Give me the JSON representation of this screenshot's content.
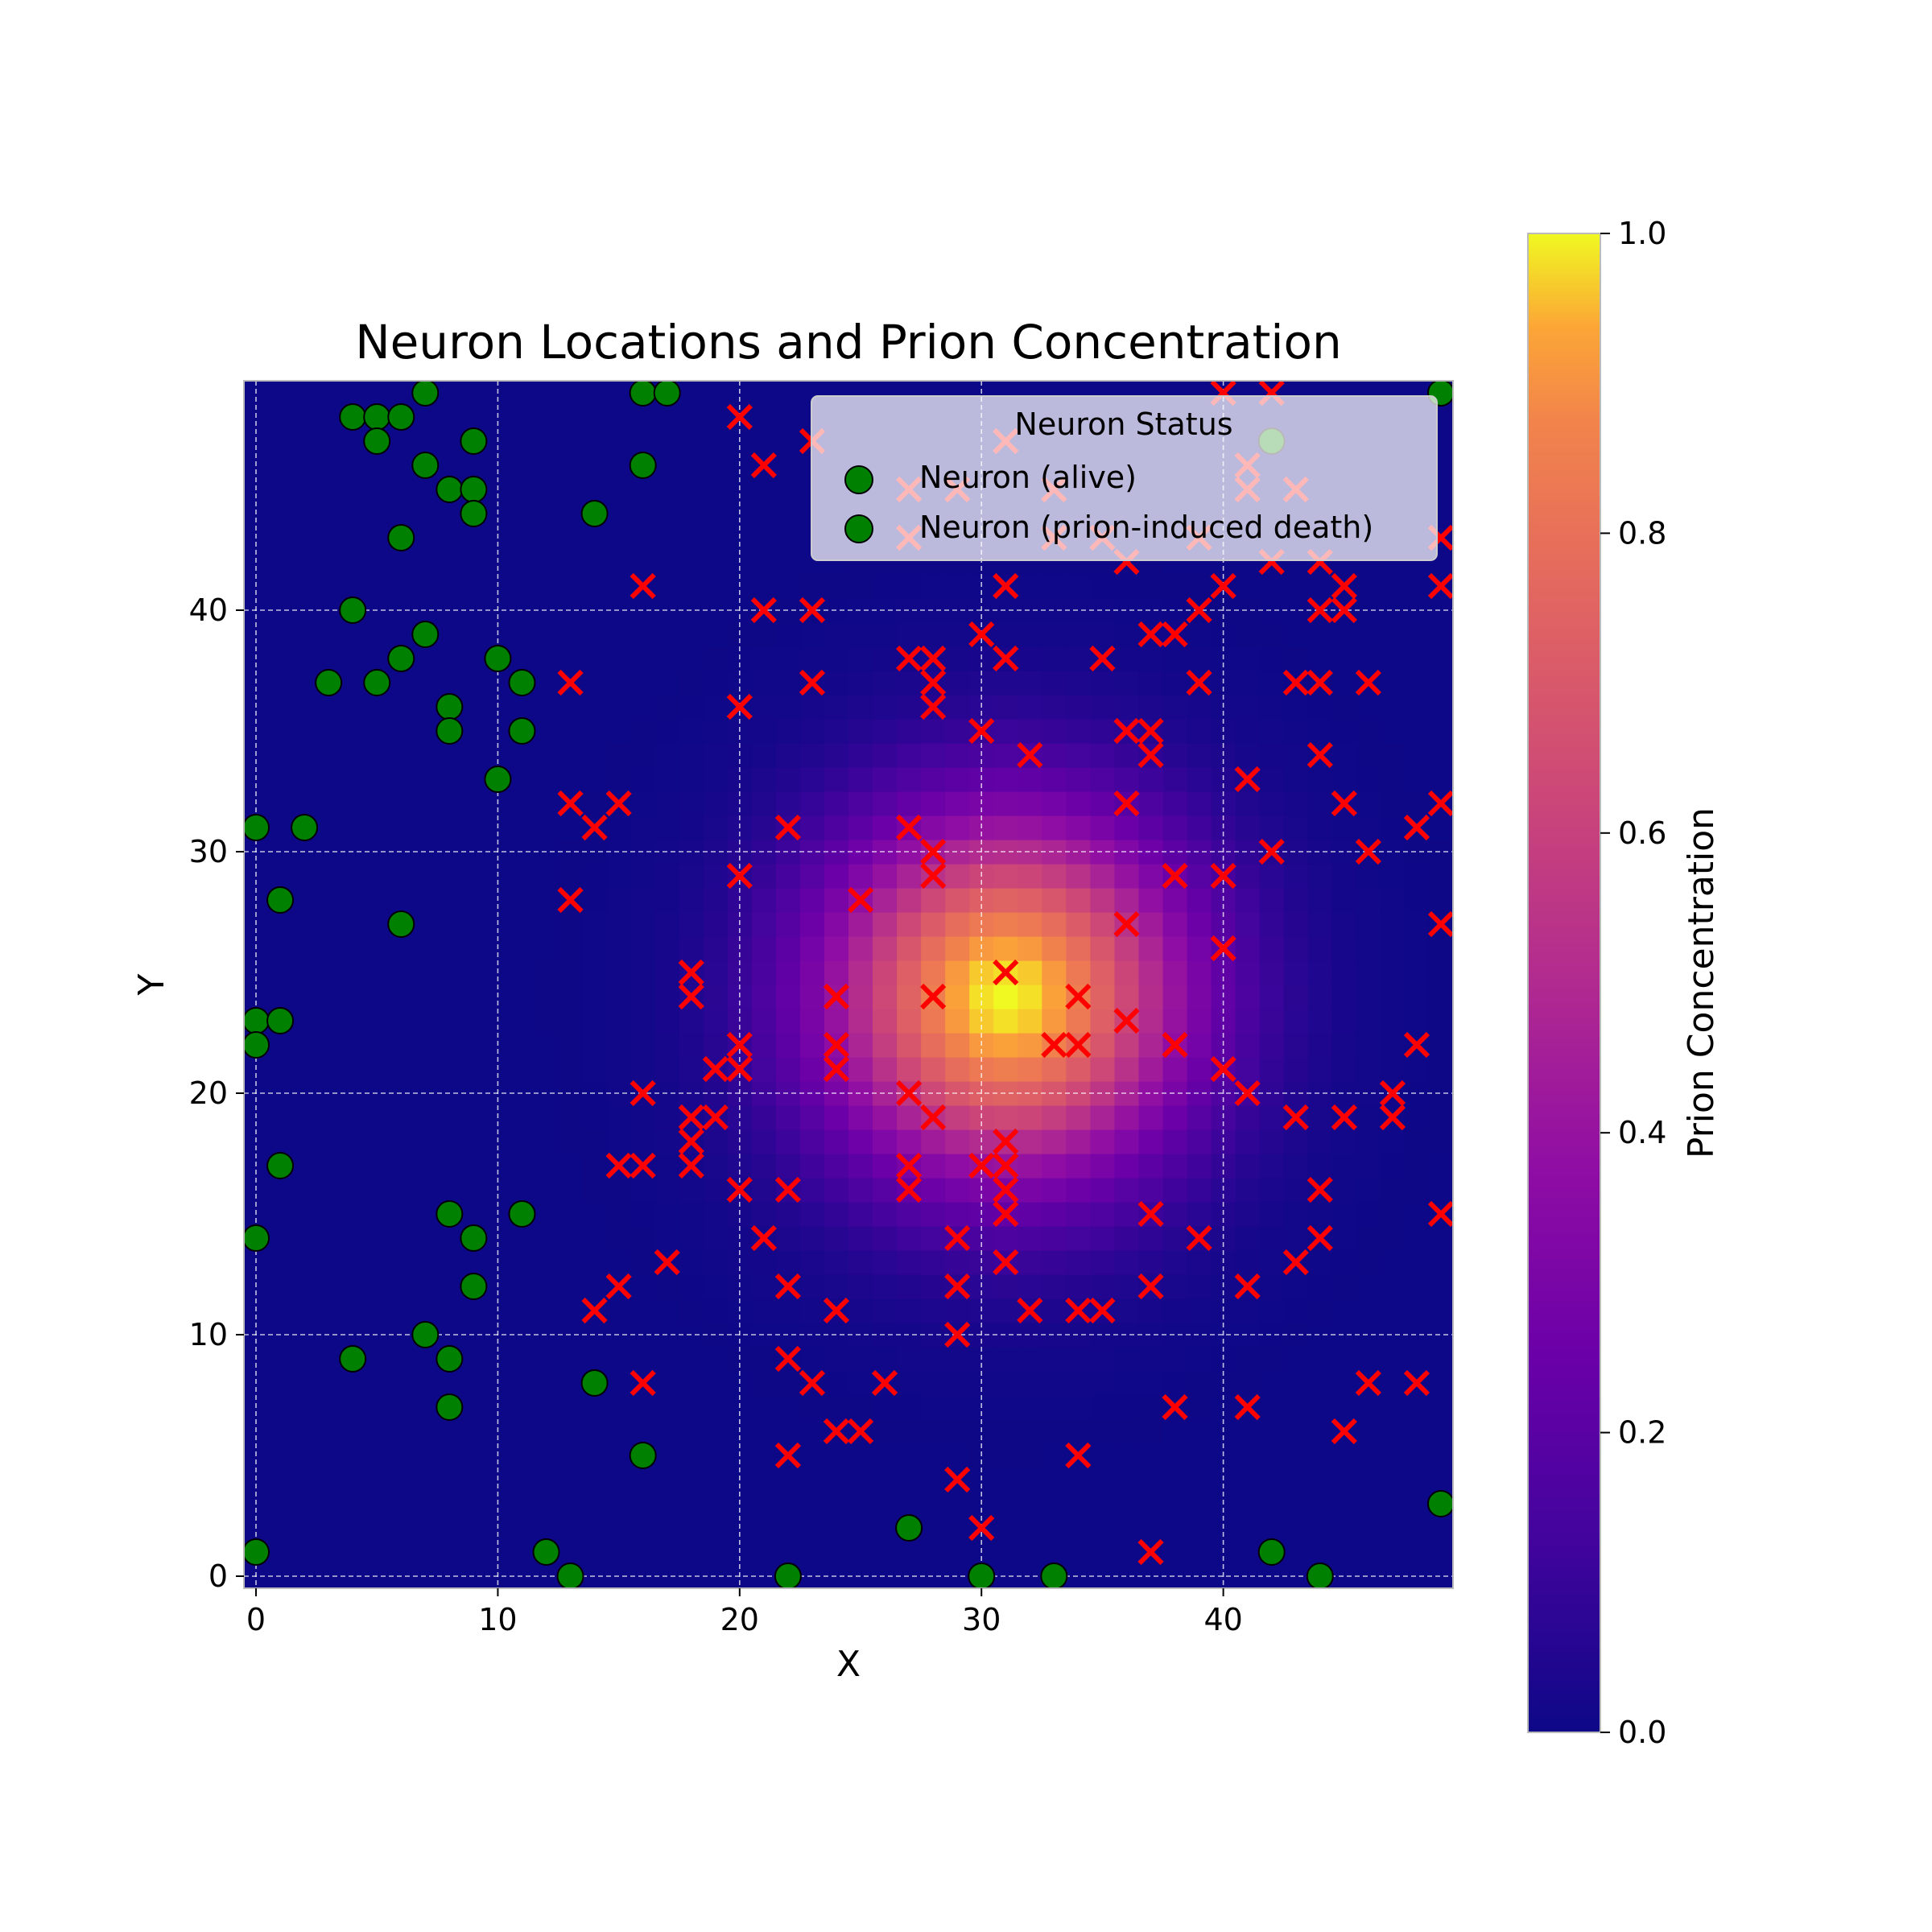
{
  "chart_data": {
    "type": "scatter",
    "title": "Neuron Locations and Prion Concentration",
    "xlabel": "X",
    "ylabel": "Y",
    "xlim": [
      -0.5,
      49.5
    ],
    "ylim": [
      -0.5,
      49.5
    ],
    "x_ticks": [
      0,
      10,
      20,
      30,
      40
    ],
    "y_ticks": [
      0,
      10,
      20,
      30,
      40
    ],
    "grid": true,
    "heatmap": {
      "grid_size": 50,
      "colormap": "plasma",
      "center": [
        31,
        24
      ],
      "sigma": 5.2,
      "peak": 1.0
    },
    "colorbar": {
      "label": "Prion Concentration",
      "range": [
        0.0,
        1.0
      ],
      "ticks": [
        "0.0",
        "0.2",
        "0.4",
        "0.6",
        "0.8",
        "1.0"
      ]
    },
    "legend": {
      "title": "Neuron Status",
      "position": "top-right",
      "entries": [
        "Neuron (alive)",
        "Neuron (prion-induced death)"
      ],
      "marker_color": "#008000"
    },
    "series": [
      {
        "name": "Neuron (alive)",
        "marker": "circle",
        "color": "#008000",
        "points": [
          [
            4,
            48
          ],
          [
            5,
            48
          ],
          [
            6,
            48
          ],
          [
            5,
            47
          ],
          [
            7,
            49
          ],
          [
            16,
            49
          ],
          [
            17,
            49
          ],
          [
            49,
            49
          ],
          [
            9,
            47
          ],
          [
            7,
            46
          ],
          [
            16,
            46
          ],
          [
            8,
            45
          ],
          [
            9,
            45
          ],
          [
            9,
            44
          ],
          [
            14,
            44
          ],
          [
            6,
            43
          ],
          [
            42,
            47
          ],
          [
            4,
            40
          ],
          [
            7,
            39
          ],
          [
            6,
            38
          ],
          [
            10,
            38
          ],
          [
            3,
            37
          ],
          [
            5,
            37
          ],
          [
            11,
            37
          ],
          [
            8,
            36
          ],
          [
            8,
            35
          ],
          [
            11,
            35
          ],
          [
            10,
            33
          ],
          [
            0,
            31
          ],
          [
            2,
            31
          ],
          [
            1,
            28
          ],
          [
            6,
            27
          ],
          [
            0,
            23
          ],
          [
            1,
            23
          ],
          [
            0,
            22
          ],
          [
            1,
            17
          ],
          [
            8,
            15
          ],
          [
            11,
            15
          ],
          [
            0,
            14
          ],
          [
            9,
            14
          ],
          [
            9,
            12
          ],
          [
            7,
            10
          ],
          [
            4,
            9
          ],
          [
            8,
            9
          ],
          [
            14,
            8
          ],
          [
            8,
            7
          ],
          [
            16,
            5
          ],
          [
            49,
            3
          ],
          [
            27,
            2
          ],
          [
            0,
            1
          ],
          [
            12,
            1
          ],
          [
            42,
            1
          ],
          [
            13,
            0
          ],
          [
            22,
            0
          ],
          [
            30,
            0
          ],
          [
            33,
            0
          ],
          [
            44,
            0
          ]
        ]
      },
      {
        "name": "Neuron (prion-induced death)",
        "marker": "x",
        "color": "#ff0000",
        "points": [
          [
            20,
            48
          ],
          [
            40,
            49
          ],
          [
            42,
            49
          ],
          [
            23,
            47
          ],
          [
            31,
            47
          ],
          [
            21,
            46
          ],
          [
            41,
            46
          ],
          [
            27,
            45
          ],
          [
            29,
            45
          ],
          [
            33,
            45
          ],
          [
            41,
            45
          ],
          [
            43,
            45
          ],
          [
            27,
            43
          ],
          [
            33,
            43
          ],
          [
            35,
            43
          ],
          [
            39,
            43
          ],
          [
            49,
            43
          ],
          [
            36,
            42
          ],
          [
            42,
            42
          ],
          [
            44,
            42
          ],
          [
            16,
            41
          ],
          [
            31,
            41
          ],
          [
            40,
            41
          ],
          [
            45,
            41
          ],
          [
            49,
            41
          ],
          [
            21,
            40
          ],
          [
            23,
            40
          ],
          [
            39,
            40
          ],
          [
            44,
            40
          ],
          [
            45,
            40
          ],
          [
            30,
            39
          ],
          [
            37,
            39
          ],
          [
            38,
            39
          ],
          [
            27,
            38
          ],
          [
            28,
            38
          ],
          [
            31,
            38
          ],
          [
            35,
            38
          ],
          [
            13,
            37
          ],
          [
            23,
            37
          ],
          [
            28,
            37
          ],
          [
            39,
            37
          ],
          [
            43,
            37
          ],
          [
            44,
            37
          ],
          [
            46,
            37
          ],
          [
            20,
            36
          ],
          [
            28,
            36
          ],
          [
            30,
            35
          ],
          [
            36,
            35
          ],
          [
            37,
            35
          ],
          [
            32,
            34
          ],
          [
            37,
            34
          ],
          [
            44,
            34
          ],
          [
            41,
            33
          ],
          [
            13,
            32
          ],
          [
            15,
            32
          ],
          [
            36,
            32
          ],
          [
            45,
            32
          ],
          [
            49,
            32
          ],
          [
            14,
            31
          ],
          [
            22,
            31
          ],
          [
            27,
            31
          ],
          [
            48,
            31
          ],
          [
            28,
            30
          ],
          [
            42,
            30
          ],
          [
            46,
            30
          ],
          [
            20,
            29
          ],
          [
            28,
            29
          ],
          [
            38,
            29
          ],
          [
            40,
            29
          ],
          [
            13,
            28
          ],
          [
            25,
            28
          ],
          [
            36,
            27
          ],
          [
            49,
            27
          ],
          [
            40,
            26
          ],
          [
            18,
            25
          ],
          [
            31,
            25
          ],
          [
            18,
            24
          ],
          [
            24,
            24
          ],
          [
            28,
            24
          ],
          [
            34,
            24
          ],
          [
            36,
            23
          ],
          [
            20,
            22
          ],
          [
            24,
            22
          ],
          [
            33,
            22
          ],
          [
            34,
            22
          ],
          [
            38,
            22
          ],
          [
            48,
            22
          ],
          [
            19,
            21
          ],
          [
            20,
            21
          ],
          [
            24,
            21
          ],
          [
            40,
            21
          ],
          [
            16,
            20
          ],
          [
            27,
            20
          ],
          [
            41,
            20
          ],
          [
            47,
            20
          ],
          [
            18,
            19
          ],
          [
            19,
            19
          ],
          [
            28,
            19
          ],
          [
            43,
            19
          ],
          [
            45,
            19
          ],
          [
            47,
            19
          ],
          [
            18,
            18
          ],
          [
            31,
            18
          ],
          [
            15,
            17
          ],
          [
            16,
            17
          ],
          [
            18,
            17
          ],
          [
            27,
            17
          ],
          [
            30,
            17
          ],
          [
            31,
            17
          ],
          [
            20,
            16
          ],
          [
            22,
            16
          ],
          [
            27,
            16
          ],
          [
            31,
            16
          ],
          [
            44,
            16
          ],
          [
            31,
            15
          ],
          [
            37,
            15
          ],
          [
            49,
            15
          ],
          [
            21,
            14
          ],
          [
            29,
            14
          ],
          [
            39,
            14
          ],
          [
            44,
            14
          ],
          [
            17,
            13
          ],
          [
            31,
            13
          ],
          [
            43,
            13
          ],
          [
            15,
            12
          ],
          [
            22,
            12
          ],
          [
            29,
            12
          ],
          [
            37,
            12
          ],
          [
            41,
            12
          ],
          [
            14,
            11
          ],
          [
            24,
            11
          ],
          [
            32,
            11
          ],
          [
            34,
            11
          ],
          [
            35,
            11
          ],
          [
            29,
            10
          ],
          [
            22,
            9
          ],
          [
            23,
            8
          ],
          [
            26,
            8
          ],
          [
            16,
            8
          ],
          [
            46,
            8
          ],
          [
            48,
            8
          ],
          [
            38,
            7
          ],
          [
            41,
            7
          ],
          [
            24,
            6
          ],
          [
            25,
            6
          ],
          [
            45,
            6
          ],
          [
            22,
            5
          ],
          [
            34,
            5
          ],
          [
            29,
            4
          ],
          [
            30,
            2
          ],
          [
            37,
            1
          ]
        ]
      }
    ]
  }
}
